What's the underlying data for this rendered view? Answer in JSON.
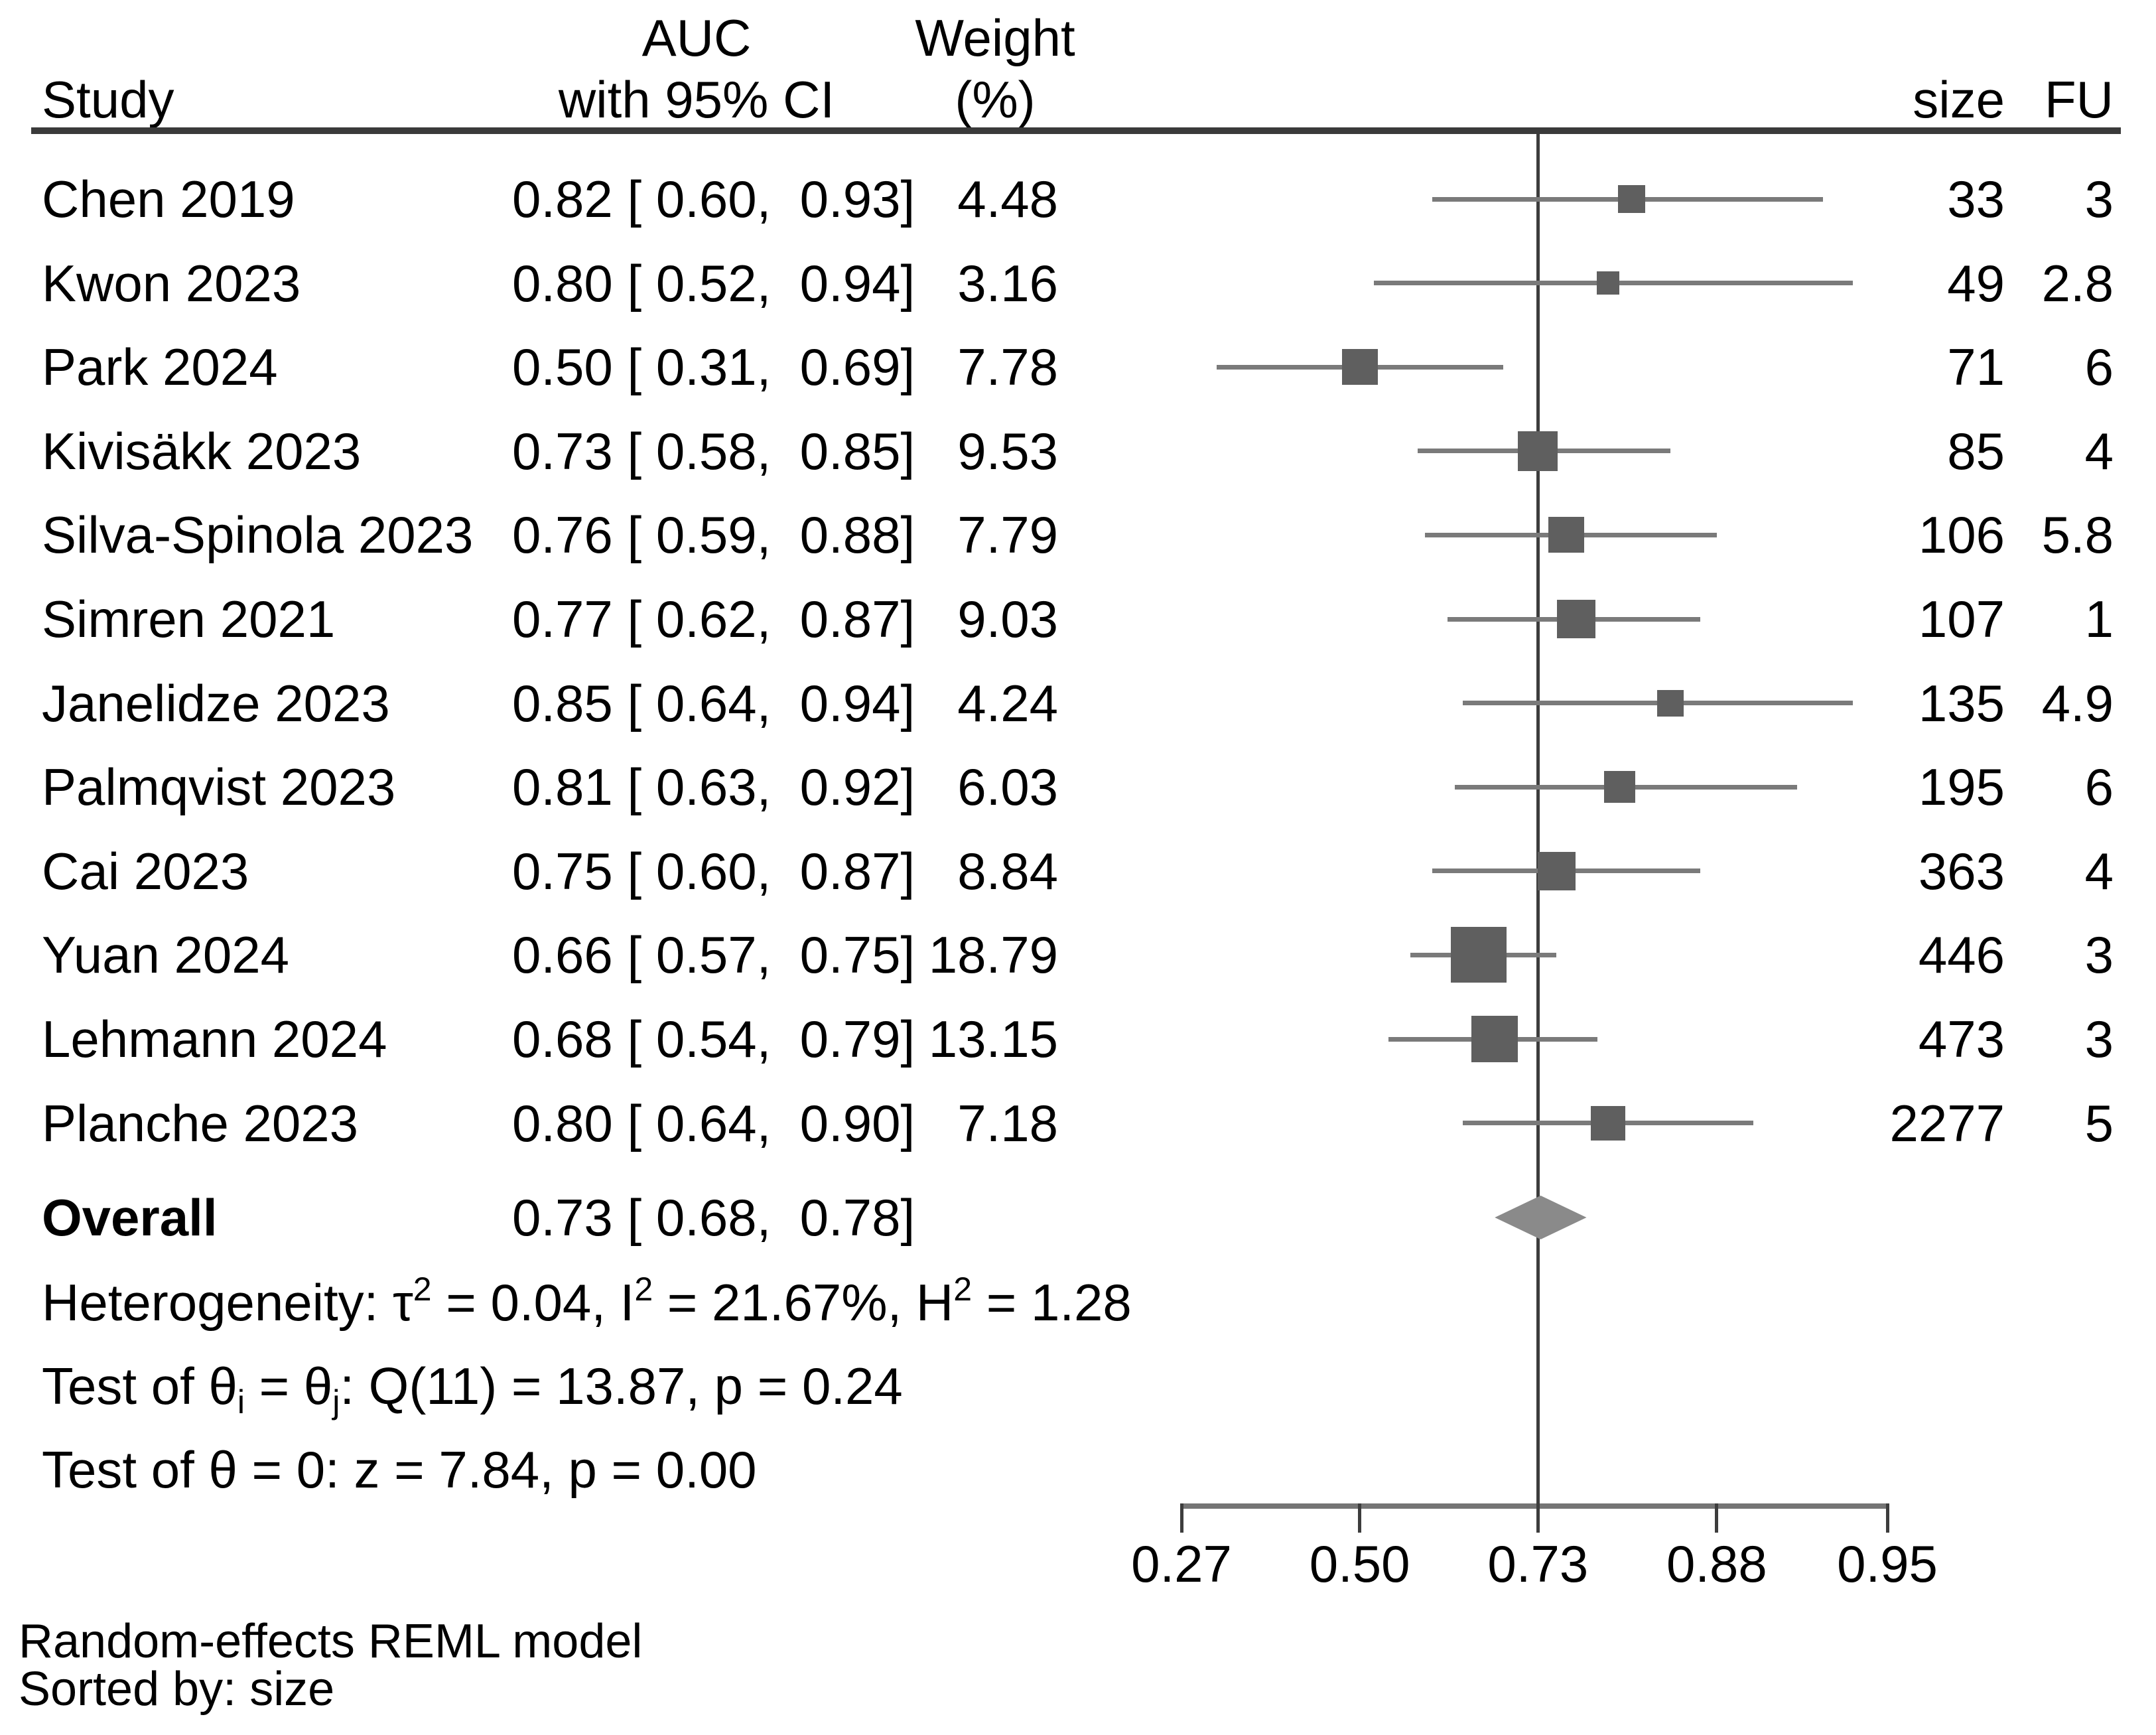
{
  "header": {
    "study": "Study",
    "auc_line1": "AUC",
    "auc_line2": "with 95% CI",
    "weight_line1": "Weight",
    "weight_line2": "(%)",
    "size": "size",
    "fu": "FU"
  },
  "overall": {
    "label": "Overall",
    "effect_display": "0.73 [ 0.68,  0.78]"
  },
  "stats": [
    {
      "name": "heterogeneity",
      "runs": [
        {
          "t": "Heterogeneity: τ"
        },
        {
          "t": "2",
          "sup": true
        },
        {
          "t": " = 0.04, I"
        },
        {
          "t": "2",
          "sup": true
        },
        {
          "t": " = 21.67%, H"
        },
        {
          "t": "2",
          "sup": true
        },
        {
          "t": " = 1.28"
        }
      ]
    },
    {
      "name": "test-theta-ij",
      "runs": [
        {
          "t": "Test of θ"
        },
        {
          "t": "i",
          "sub": true
        },
        {
          "t": " = θ"
        },
        {
          "t": "j",
          "sub": true
        },
        {
          "t": ": Q(11) = 13.87, p = 0.24"
        }
      ]
    },
    {
      "name": "test-theta-zero",
      "runs": [
        {
          "t": "Test of θ = 0: z = 7.84, p = 0.00"
        }
      ]
    }
  ],
  "footer": {
    "line1": "Random-effects REML model",
    "line2": "Sorted by: size"
  },
  "colors": {
    "square": "#5f5f5f",
    "ci_line": "#7a7a7a",
    "diamond": "#8a8a8a",
    "ref_line": "#3d3d3d",
    "axis_line": "#757575",
    "tick": "#3d3d3d",
    "rule": "#3a3a3a",
    "text": "#000000",
    "background": "#ffffff"
  },
  "chart_data": {
    "type": "forest",
    "effect_measure": "AUC",
    "x_axis": {
      "scale": "logit",
      "ticks": [
        0.27,
        0.5,
        0.73,
        0.88,
        0.95
      ],
      "tick_labels": [
        "0.27",
        "0.50",
        "0.73",
        "0.88",
        "0.95"
      ],
      "reference_line": 0.73,
      "xlim": [
        0.27,
        0.95
      ]
    },
    "studies": [
      {
        "name": "Chen 2019",
        "auc": 0.82,
        "ci_low": 0.6,
        "ci_high": 0.93,
        "weight_pct": 4.48,
        "size": 33,
        "fu": "3",
        "effect_display": "0.82 [ 0.60,  0.93]",
        "weight_display": "4.48"
      },
      {
        "name": "Kwon 2023",
        "auc": 0.8,
        "ci_low": 0.52,
        "ci_high": 0.94,
        "weight_pct": 3.16,
        "size": 49,
        "fu": "2.8",
        "effect_display": "0.80 [ 0.52,  0.94]",
        "weight_display": "3.16"
      },
      {
        "name": "Park 2024",
        "auc": 0.5,
        "ci_low": 0.31,
        "ci_high": 0.69,
        "weight_pct": 7.78,
        "size": 71,
        "fu": "6",
        "effect_display": "0.50 [ 0.31,  0.69]",
        "weight_display": "7.78"
      },
      {
        "name": "Kivisäkk 2023",
        "auc": 0.73,
        "ci_low": 0.58,
        "ci_high": 0.85,
        "weight_pct": 9.53,
        "size": 85,
        "fu": "4",
        "effect_display": "0.73 [ 0.58,  0.85]",
        "weight_display": "9.53"
      },
      {
        "name": "Silva-Spinola 2023",
        "auc": 0.76,
        "ci_low": 0.59,
        "ci_high": 0.88,
        "weight_pct": 7.79,
        "size": 106,
        "fu": "5.8",
        "effect_display": "0.76 [ 0.59,  0.88]",
        "weight_display": "7.79"
      },
      {
        "name": "Simren 2021",
        "auc": 0.77,
        "ci_low": 0.62,
        "ci_high": 0.87,
        "weight_pct": 9.03,
        "size": 107,
        "fu": "1",
        "effect_display": "0.77 [ 0.62,  0.87]",
        "weight_display": "9.03"
      },
      {
        "name": "Janelidze 2023",
        "auc": 0.85,
        "ci_low": 0.64,
        "ci_high": 0.94,
        "weight_pct": 4.24,
        "size": 135,
        "fu": "4.9",
        "effect_display": "0.85 [ 0.64,  0.94]",
        "weight_display": "4.24"
      },
      {
        "name": "Palmqvist 2023",
        "auc": 0.81,
        "ci_low": 0.63,
        "ci_high": 0.92,
        "weight_pct": 6.03,
        "size": 195,
        "fu": "6",
        "effect_display": "0.81 [ 0.63,  0.92]",
        "weight_display": "6.03"
      },
      {
        "name": "Cai 2023",
        "auc": 0.75,
        "ci_low": 0.6,
        "ci_high": 0.87,
        "weight_pct": 8.84,
        "size": 363,
        "fu": "4",
        "effect_display": "0.75 [ 0.60,  0.87]",
        "weight_display": "8.84"
      },
      {
        "name": "Yuan 2024",
        "auc": 0.66,
        "ci_low": 0.57,
        "ci_high": 0.75,
        "weight_pct": 18.79,
        "size": 446,
        "fu": "3",
        "effect_display": "0.66 [ 0.57,  0.75]",
        "weight_display": "18.79"
      },
      {
        "name": "Lehmann 2024",
        "auc": 0.68,
        "ci_low": 0.54,
        "ci_high": 0.79,
        "weight_pct": 13.15,
        "size": 473,
        "fu": "3",
        "effect_display": "0.68 [ 0.54,  0.79]",
        "weight_display": "13.15"
      },
      {
        "name": "Planche 2023",
        "auc": 0.8,
        "ci_low": 0.64,
        "ci_high": 0.9,
        "weight_pct": 7.18,
        "size": 2277,
        "fu": "5",
        "effect_display": "0.80 [ 0.64,  0.90]",
        "weight_display": "7.18"
      }
    ],
    "overall": {
      "auc": 0.73,
      "ci_low": 0.68,
      "ci_high": 0.78
    },
    "heterogeneity": {
      "tau2": 0.04,
      "I2_pct": 21.67,
      "H2": 1.28
    },
    "test_homogeneity": {
      "Q_df": 11,
      "Q": 13.87,
      "p": 0.24
    },
    "test_significance": {
      "z": 7.84,
      "p": 0.0
    },
    "model": "Random-effects REML model",
    "sorted_by": "size"
  }
}
